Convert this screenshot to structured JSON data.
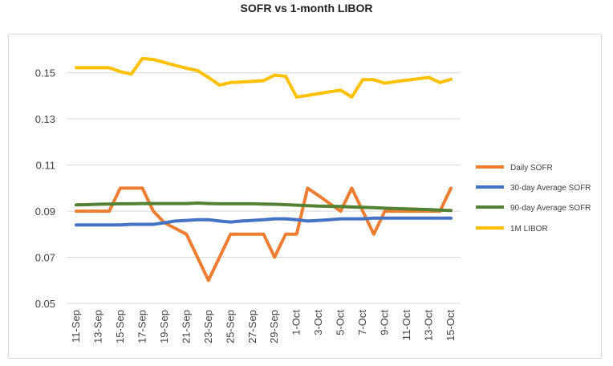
{
  "chart_data": {
    "type": "line",
    "title": "SOFR vs 1-month LIBOR",
    "xlabel": "",
    "ylabel": "",
    "x": [
      "11-Sep",
      "12-Sep",
      "13-Sep",
      "14-Sep",
      "15-Sep",
      "16-Sep",
      "17-Sep",
      "18-Sep",
      "19-Sep",
      "20-Sep",
      "21-Sep",
      "22-Sep",
      "23-Sep",
      "24-Sep",
      "25-Sep",
      "26-Sep",
      "27-Sep",
      "28-Sep",
      "29-Sep",
      "30-Sep",
      "1-Oct",
      "2-Oct",
      "3-Oct",
      "4-Oct",
      "5-Oct",
      "6-Oct",
      "7-Oct",
      "8-Oct",
      "9-Oct",
      "10-Oct",
      "11-Oct",
      "12-Oct",
      "13-Oct",
      "14-Oct",
      "15-Oct"
    ],
    "x_tick_labels": [
      "11-Sep",
      "13-Sep",
      "15-Sep",
      "17-Sep",
      "19-Sep",
      "21-Sep",
      "23-Sep",
      "25-Sep",
      "27-Sep",
      "29-Sep",
      "1-Oct",
      "3-Oct",
      "5-Oct",
      "7-Oct",
      "9-Oct",
      "11-Oct",
      "13-Oct",
      "15-Oct"
    ],
    "y_ticks": [
      "0.05",
      "0.07",
      "0.09",
      "0.11",
      "0.13",
      "0.15"
    ],
    "ylim": [
      0.05,
      0.16
    ],
    "grid": "horizontal",
    "legend_position": "right",
    "series": [
      {
        "name": "Daily SOFR",
        "color": "#ed7d31",
        "values": [
          0.09,
          0.09,
          0.09,
          0.09,
          0.1,
          0.1,
          0.1,
          0.09,
          0.085,
          0.0825,
          0.08,
          0.07,
          0.06,
          0.07,
          0.08,
          0.08,
          0.08,
          0.08,
          0.07,
          0.08,
          0.08,
          0.1,
          0.0967,
          0.0933,
          0.09,
          0.1,
          0.09,
          0.08,
          0.09,
          0.09,
          0.09,
          0.09,
          0.09,
          0.09,
          0.1
        ]
      },
      {
        "name": "30-day Average SOFR",
        "color": "#4472c4",
        "values": [
          0.084,
          0.084,
          0.084,
          0.084,
          0.084,
          0.0843,
          0.0843,
          0.0843,
          0.085,
          0.0857,
          0.086,
          0.0863,
          0.0863,
          0.0857,
          0.0853,
          0.0857,
          0.086,
          0.0863,
          0.0867,
          0.0867,
          0.0863,
          0.0857,
          0.086,
          0.0863,
          0.0867,
          0.0867,
          0.0867,
          0.087,
          0.087,
          0.087,
          0.087,
          0.087,
          0.087,
          0.087,
          0.087
        ]
      },
      {
        "name": "90-day Average SOFR",
        "color": "#548235",
        "values": [
          0.0927,
          0.0928,
          0.093,
          0.0931,
          0.0932,
          0.0932,
          0.0933,
          0.0933,
          0.0933,
          0.0933,
          0.0933,
          0.0935,
          0.0933,
          0.0932,
          0.0932,
          0.0932,
          0.0932,
          0.0931,
          0.093,
          0.0928,
          0.0926,
          0.0924,
          0.0922,
          0.0921,
          0.092,
          0.0918,
          0.0917,
          0.0915,
          0.0913,
          0.0911,
          0.091,
          0.0908,
          0.0907,
          0.0905,
          0.0903
        ]
      },
      {
        "name": "1M LIBOR",
        "color": "#ffc000",
        "values": [
          0.1522,
          0.1522,
          0.1522,
          0.1522,
          0.1505,
          0.1495,
          0.1562,
          0.1558,
          0.1545,
          0.1532,
          0.152,
          0.151,
          0.148,
          0.1447,
          0.1458,
          0.146,
          0.1463,
          0.1466,
          0.149,
          0.1485,
          0.1395,
          0.1402,
          0.141,
          0.1418,
          0.1425,
          0.1395,
          0.147,
          0.147,
          0.1455,
          0.1462,
          0.1468,
          0.1474,
          0.148,
          0.1458,
          0.1472
        ]
      }
    ]
  }
}
